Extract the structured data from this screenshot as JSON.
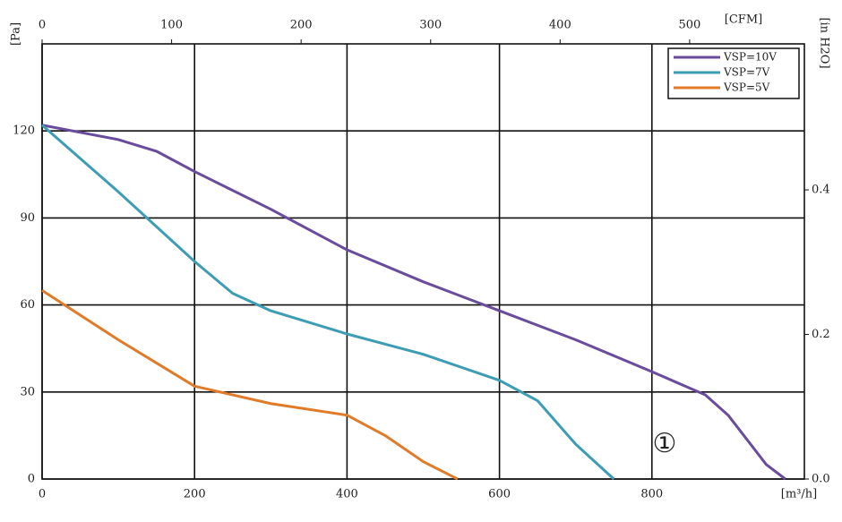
{
  "chart_data": {
    "type": "line",
    "y_label": "[Pa]",
    "y2_label": "[in H2O]",
    "x_unit_label": "[m³/h]",
    "x2_label": "[CFM]",
    "annotation": "①",
    "xlim": [
      0,
      1000
    ],
    "xticks": [
      0,
      200,
      400,
      600,
      800
    ],
    "ylim": [
      0,
      150
    ],
    "yticks": [
      0,
      30,
      60,
      90,
      120
    ],
    "x2lim": [
      0,
      588.6
    ],
    "x2ticks": [
      0,
      100,
      200,
      300,
      400,
      500
    ],
    "y2lim": [
      0,
      0.602
    ],
    "y2ticks": [
      {
        "value": 0,
        "label": "0.0"
      },
      0.2,
      0.4
    ],
    "grid": true,
    "legend": "top-right",
    "series": [
      {
        "name": "VSP=10V",
        "color": "#6a4c9c",
        "x": [
          0,
          100,
          150,
          200,
          300,
          400,
          500,
          600,
          700,
          800,
          870,
          900,
          950,
          975
        ],
        "values": [
          122,
          117,
          113,
          106,
          93,
          79,
          68,
          58,
          48,
          37,
          29,
          22,
          5,
          0
        ]
      },
      {
        "name": "VSP=7V",
        "color": "#3c9db4",
        "x": [
          0,
          100,
          200,
          250,
          300,
          400,
          500,
          600,
          650,
          700,
          750
        ],
        "values": [
          122,
          99,
          75,
          64,
          58,
          50,
          43,
          34,
          27,
          12,
          0
        ]
      },
      {
        "name": "VSP=5V",
        "color": "#e07b2a",
        "x": [
          0,
          100,
          200,
          250,
          300,
          400,
          450,
          500,
          545
        ],
        "values": [
          65,
          48,
          32,
          29,
          26,
          22,
          15,
          6,
          0
        ]
      }
    ]
  }
}
